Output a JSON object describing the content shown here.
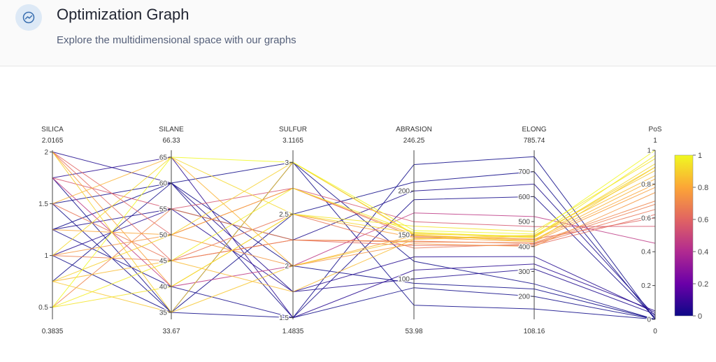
{
  "header": {
    "title": "Optimization Graph",
    "subtitle": "Explore the multidimensional space with our graphs",
    "icon": "chart-line-icon"
  },
  "colors": {
    "header_bg": "#fafafa",
    "icon_bg": "#dde9f6",
    "icon_stroke": "#3a6fb0",
    "colorscale": [
      "#0d0887",
      "#6a00a8",
      "#b12a90",
      "#e16462",
      "#fca636",
      "#f0f921"
    ]
  },
  "chart_data": {
    "type": "parallel_coordinates",
    "color_dimension": "PoS",
    "colorbar": {
      "ticks": [
        0,
        0.2,
        0.4,
        0.6,
        0.8,
        1
      ],
      "labels": [
        "0",
        "0.2",
        "0.4",
        "0.6",
        "0.8",
        "1"
      ]
    },
    "dimensions": [
      {
        "label": "SILICA",
        "min": 0.3835,
        "max": 2.0165,
        "min_label": "0.3835",
        "max_label": "2.0165",
        "ticks": [
          0.5,
          1,
          1.5,
          2
        ],
        "tick_labels": [
          "0.5",
          "1",
          "1.5",
          "2"
        ],
        "levels": [
          0.3835,
          0.5,
          0.75,
          1.0,
          1.25,
          1.5,
          1.75,
          2.0,
          2.0165
        ]
      },
      {
        "label": "SILANE",
        "min": 33.67,
        "max": 66.33,
        "min_label": "33.67",
        "max_label": "66.33",
        "ticks": [
          35,
          40,
          45,
          50,
          55,
          60,
          65
        ],
        "tick_labels": [
          "35",
          "40",
          "45",
          "50",
          "55",
          "60",
          "65"
        ],
        "levels": [
          33.67,
          35,
          40,
          45,
          50,
          55,
          60,
          65,
          66.33
        ]
      },
      {
        "label": "SULFUR",
        "min": 1.4835,
        "max": 3.1165,
        "min_label": "1.4835",
        "max_label": "3.1165",
        "ticks": [
          1.5,
          2,
          2.5,
          3
        ],
        "tick_labels": [
          "1.5",
          "2",
          "2.5",
          "3"
        ],
        "levels": [
          1.4835,
          1.5,
          1.75,
          2.0,
          2.25,
          2.5,
          2.75,
          3.0,
          3.1165
        ]
      },
      {
        "label": "ABRASION",
        "min": 53.98,
        "max": 246.25,
        "min_label": "53.98",
        "max_label": "246.25",
        "ticks": [
          100,
          150,
          200
        ],
        "tick_labels": [
          "100",
          "150",
          "200"
        ]
      },
      {
        "label": "ELONG",
        "min": 108.16,
        "max": 785.74,
        "min_label": "108.16",
        "max_label": "785.74",
        "ticks": [
          200,
          300,
          400,
          500,
          600,
          700
        ],
        "tick_labels": [
          "200",
          "300",
          "400",
          "500",
          "600",
          "700"
        ]
      },
      {
        "label": "PoS",
        "min": 0,
        "max": 1,
        "min_label": "0",
        "max_label": "1",
        "ticks": [
          0,
          0.2,
          0.4,
          0.6,
          0.8,
          1
        ],
        "tick_labels": [
          "0",
          "0.2",
          "0.4",
          "0.6",
          "0.8",
          "1"
        ]
      }
    ],
    "series": [
      {
        "values": [
          2.0,
          35,
          3.0,
          150,
          420,
          0.9
        ]
      },
      {
        "values": [
          1.75,
          65,
          1.5,
          110,
          330,
          0.05
        ]
      },
      {
        "values": [
          1.0,
          50,
          2.0,
          140,
          400,
          0.75
        ]
      },
      {
        "values": [
          0.5,
          40,
          2.5,
          160,
          460,
          0.95
        ]
      },
      {
        "values": [
          1.5,
          60,
          3.0,
          120,
          250,
          0.0
        ]
      },
      {
        "values": [
          0.75,
          45,
          1.75,
          145,
          440,
          0.85
        ]
      },
      {
        "values": [
          1.25,
          55,
          2.25,
          200,
          650,
          0.02
        ]
      },
      {
        "values": [
          2.0,
          50,
          2.75,
          148,
          430,
          0.6
        ]
      },
      {
        "values": [
          1.0,
          35,
          1.5,
          90,
          200,
          0.0
        ]
      },
      {
        "values": [
          0.5,
          65,
          3.0,
          155,
          450,
          1.0
        ]
      },
      {
        "values": [
          1.75,
          40,
          2.0,
          175,
          520,
          0.45
        ]
      },
      {
        "values": [
          1.5,
          45,
          2.5,
          135,
          410,
          0.65
        ]
      },
      {
        "values": [
          0.75,
          60,
          1.5,
          230,
          760,
          0.0
        ]
      },
      {
        "values": [
          1.25,
          50,
          2.75,
          150,
          425,
          0.8
        ]
      },
      {
        "values": [
          2.0,
          60,
          1.75,
          100,
          310,
          0.03
        ]
      },
      {
        "values": [
          0.5,
          55,
          2.25,
          142,
          415,
          0.7
        ]
      },
      {
        "values": [
          1.0,
          65,
          2.5,
          152,
          435,
          0.92
        ]
      },
      {
        "values": [
          1.5,
          35,
          3.0,
          70,
          150,
          0.0
        ]
      },
      {
        "values": [
          1.75,
          55,
          2.75,
          165,
          480,
          0.55
        ]
      },
      {
        "values": [
          0.75,
          35,
          2.0,
          146,
          445,
          0.88
        ]
      },
      {
        "values": [
          1.25,
          40,
          1.5,
          190,
          600,
          0.01
        ]
      },
      {
        "values": [
          2.0,
          45,
          2.25,
          138,
          405,
          0.62
        ]
      },
      {
        "values": [
          0.5,
          45,
          2.75,
          153,
          438,
          0.97
        ]
      },
      {
        "values": [
          1.0,
          55,
          1.75,
          125,
          360,
          0.04
        ]
      },
      {
        "values": [
          1.5,
          65,
          2.0,
          149,
          428,
          0.83
        ]
      },
      {
        "values": [
          1.75,
          35,
          2.5,
          210,
          700,
          0.0
        ]
      },
      {
        "values": [
          0.75,
          50,
          3.0,
          151,
          442,
          0.9
        ]
      },
      {
        "values": [
          1.25,
          60,
          2.0,
          95,
          230,
          0.0
        ]
      },
      {
        "values": [
          2.0,
          40,
          2.5,
          147,
          420,
          0.78
        ]
      },
      {
        "values": [
          1.0,
          45,
          2.25,
          143,
          412,
          0.68
        ]
      }
    ]
  }
}
